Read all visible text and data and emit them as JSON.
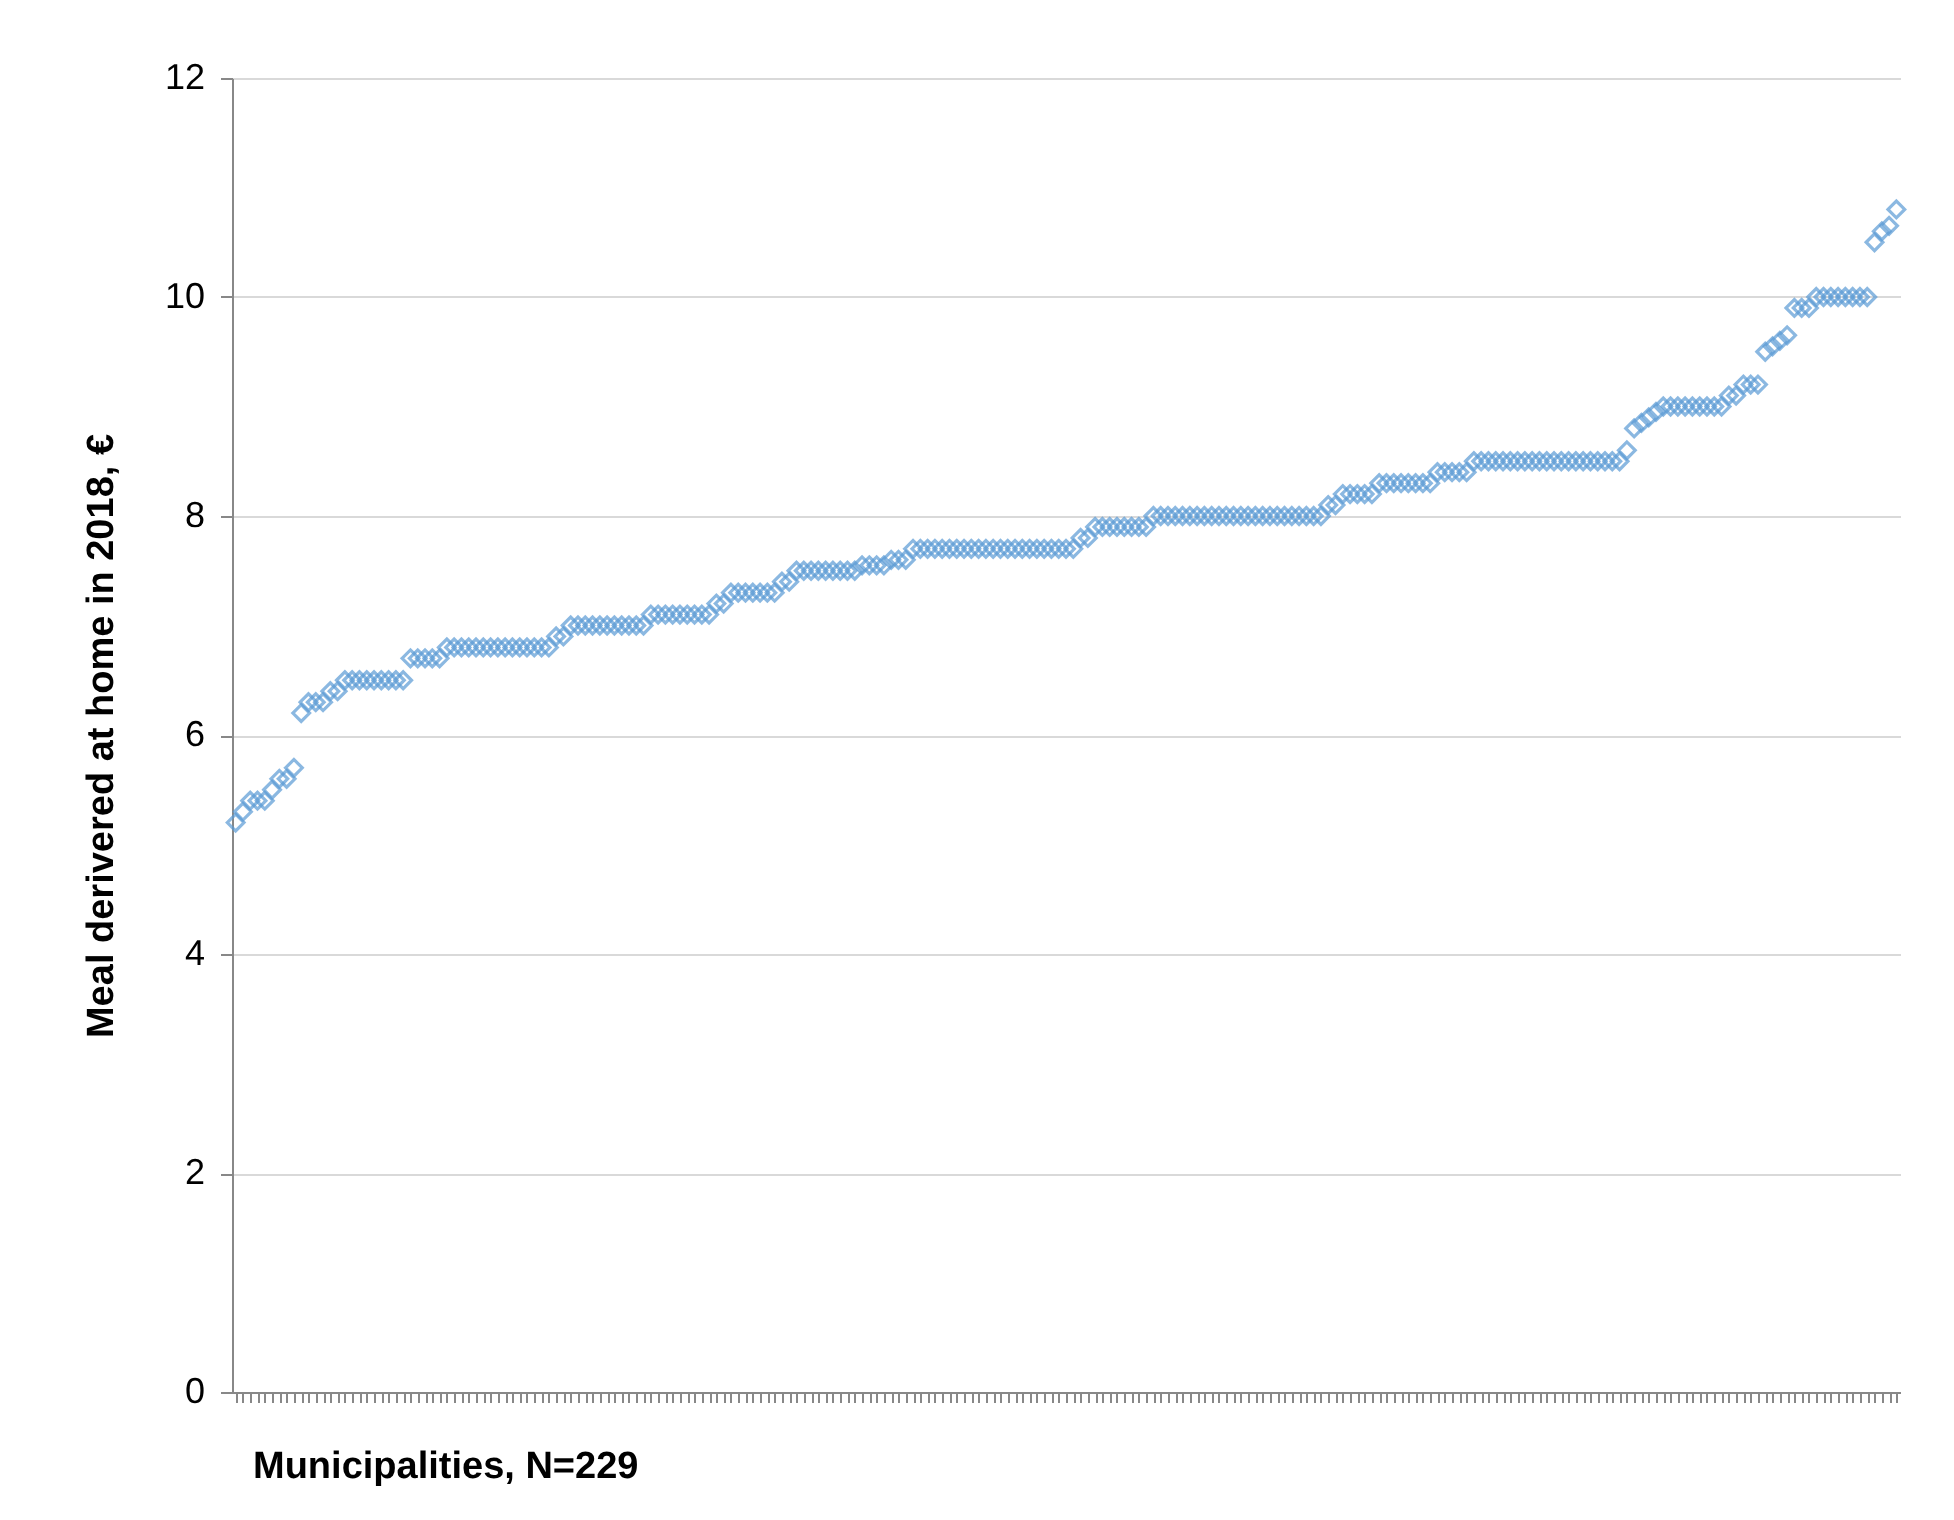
{
  "chart_data": {
    "type": "scatter",
    "xlabel": "Municipalities, N=229",
    "ylabel": "Meal derivered at home in 2018, €",
    "categories": [
      null,
      null,
      null,
      null,
      null,
      null,
      null,
      null,
      null,
      null,
      null,
      null,
      null,
      null,
      null,
      null,
      null,
      null,
      null,
      null,
      null,
      null,
      null,
      null,
      null,
      null,
      null,
      null,
      null,
      null,
      null,
      null,
      null,
      null,
      null,
      null,
      null,
      null,
      null,
      null,
      null,
      null,
      null,
      null,
      null,
      null,
      null,
      null,
      null,
      null,
      null,
      null,
      null,
      null,
      null,
      null,
      null,
      null,
      null,
      null,
      null,
      null,
      null,
      null,
      null,
      null,
      null,
      null,
      null,
      null,
      null,
      null,
      null,
      null,
      null,
      null,
      null,
      null,
      null,
      null,
      null,
      null,
      null,
      null,
      null,
      null,
      null,
      null,
      null,
      null,
      null,
      null,
      null,
      null,
      null,
      null,
      null,
      null,
      null,
      null,
      null,
      null,
      null,
      null,
      null,
      null,
      null,
      null,
      null,
      null,
      null,
      null,
      null,
      null,
      null,
      null,
      null,
      null,
      null,
      null,
      null,
      null,
      null,
      null,
      null,
      null,
      null,
      null,
      null,
      null,
      null,
      null,
      null,
      null,
      null,
      null,
      null,
      null,
      null,
      null,
      null,
      null,
      null,
      null,
      null,
      null,
      null,
      null,
      null,
      null,
      null,
      null,
      null,
      null,
      null,
      null,
      null,
      null,
      null,
      null,
      null,
      null,
      null,
      null,
      null,
      null,
      null,
      null,
      null,
      null,
      null,
      null,
      null,
      null,
      null,
      null,
      null,
      null,
      null,
      null,
      null,
      null,
      null,
      null,
      null,
      null,
      null,
      null,
      null,
      null,
      null,
      null,
      null,
      null,
      null,
      null,
      null,
      null,
      null,
      null,
      null,
      null,
      null,
      null,
      null,
      null,
      null,
      null,
      null,
      null,
      null,
      null,
      null,
      null,
      null,
      null,
      null,
      null,
      null,
      null,
      null,
      null,
      null,
      null,
      null,
      null,
      null,
      null,
      null
    ],
    "series": [
      {
        "color": "#5b9bd5",
        "values": [
          5.2,
          5.3,
          5.4,
          5.4,
          5.4,
          5.5,
          5.6,
          5.6,
          5.7,
          6.2,
          6.3,
          6.3,
          6.3,
          6.4,
          6.4,
          6.5,
          6.5,
          6.5,
          6.5,
          6.5,
          6.5,
          6.5,
          6.5,
          6.5,
          6.7,
          6.7,
          6.7,
          6.7,
          6.7,
          6.8,
          6.8,
          6.8,
          6.8,
          6.8,
          6.8,
          6.8,
          6.8,
          6.8,
          6.8,
          6.8,
          6.8,
          6.8,
          6.8,
          6.8,
          6.9,
          6.9,
          7.0,
          7.0,
          7.0,
          7.0,
          7.0,
          7.0,
          7.0,
          7.0,
          7.0,
          7.0,
          7.0,
          7.1,
          7.1,
          7.1,
          7.1,
          7.1,
          7.1,
          7.1,
          7.1,
          7.1,
          7.2,
          7.2,
          7.3,
          7.3,
          7.3,
          7.3,
          7.3,
          7.3,
          7.3,
          7.4,
          7.4,
          7.5,
          7.5,
          7.5,
          7.5,
          7.5,
          7.5,
          7.5,
          7.5,
          7.5,
          7.55,
          7.55,
          7.55,
          7.55,
          7.6,
          7.6,
          7.6,
          7.7,
          7.7,
          7.7,
          7.7,
          7.7,
          7.7,
          7.7,
          7.7,
          7.7,
          7.7,
          7.7,
          7.7,
          7.7,
          7.7,
          7.7,
          7.7,
          7.7,
          7.7,
          7.7,
          7.7,
          7.7,
          7.7,
          7.7,
          7.8,
          7.8,
          7.9,
          7.9,
          7.9,
          7.9,
          7.9,
          7.9,
          7.9,
          7.9,
          8.0,
          8.0,
          8.0,
          8.0,
          8.0,
          8.0,
          8.0,
          8.0,
          8.0,
          8.0,
          8.0,
          8.0,
          8.0,
          8.0,
          8.0,
          8.0,
          8.0,
          8.0,
          8.0,
          8.0,
          8.0,
          8.0,
          8.0,
          8.0,
          8.1,
          8.1,
          8.2,
          8.2,
          8.2,
          8.2,
          8.2,
          8.3,
          8.3,
          8.3,
          8.3,
          8.3,
          8.3,
          8.3,
          8.3,
          8.4,
          8.4,
          8.4,
          8.4,
          8.4,
          8.5,
          8.5,
          8.5,
          8.5,
          8.5,
          8.5,
          8.5,
          8.5,
          8.5,
          8.5,
          8.5,
          8.5,
          8.5,
          8.5,
          8.5,
          8.5,
          8.5,
          8.5,
          8.5,
          8.5,
          8.5,
          8.6,
          8.8,
          8.85,
          8.9,
          8.95,
          9.0,
          9.0,
          9.0,
          9.0,
          9.0,
          9.0,
          9.0,
          9.0,
          9.0,
          9.1,
          9.1,
          9.2,
          9.2,
          9.2,
          9.5,
          9.55,
          9.6,
          9.65,
          9.9,
          9.9,
          9.9,
          10.0,
          10.0,
          10.0,
          10.0,
          10.0,
          10.0,
          10.0,
          10.0,
          10.5,
          10.6,
          10.65,
          10.8
        ]
      }
    ],
    "ylim": [
      0,
      12
    ],
    "yticks": [
      0,
      2,
      4,
      6,
      8,
      10,
      12
    ],
    "grid": "y",
    "marker": "diamond",
    "tick_labels": "y"
  }
}
